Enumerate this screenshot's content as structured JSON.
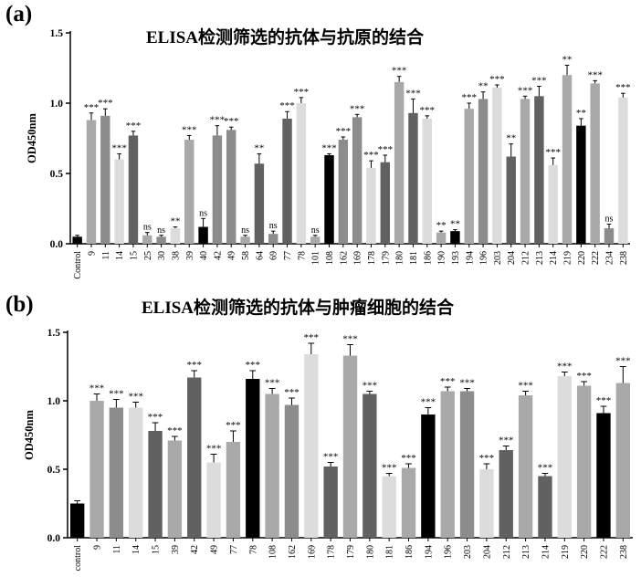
{
  "panels": {
    "a": {
      "label": "(a)",
      "title": "ELISA检测筛选的抗体与抗原的结合"
    },
    "b": {
      "label": "(b)",
      "title": "ELISA检测筛选的抗体与肿瘤细胞的结合"
    }
  },
  "chart_data": [
    {
      "type": "bar",
      "title": "ELISA检测筛选的抗体与抗原的结合",
      "ylabel": "OD450nm",
      "xlabel": "",
      "ylim": [
        0,
        1.5
      ],
      "yticks": [
        "0.0",
        "0.5",
        "1.0",
        "1.5"
      ],
      "grid": false,
      "categories": [
        "Control",
        "9",
        "11",
        "14",
        "15",
        "25",
        "30",
        "38",
        "39",
        "40",
        "42",
        "49",
        "58",
        "64",
        "69",
        "77",
        "78",
        "101",
        "108",
        "162",
        "169",
        "178",
        "179",
        "180",
        "181",
        "186",
        "190",
        "193",
        "194",
        "196",
        "203",
        "204",
        "212",
        "213",
        "214",
        "219",
        "220",
        "222",
        "234",
        "238"
      ],
      "values": [
        0.05,
        0.88,
        0.91,
        0.6,
        0.77,
        0.06,
        0.05,
        0.11,
        0.74,
        0.12,
        0.77,
        0.81,
        0.05,
        0.57,
        0.07,
        0.89,
        1.0,
        0.05,
        0.63,
        0.74,
        0.9,
        0.54,
        0.58,
        1.15,
        0.93,
        0.89,
        0.08,
        0.09,
        0.96,
        1.03,
        1.11,
        0.62,
        1.03,
        1.05,
        0.56,
        1.2,
        0.84,
        1.14,
        0.11,
        1.04
      ],
      "errors": [
        0.01,
        0.05,
        0.05,
        0.04,
        0.03,
        0.02,
        0.01,
        0.01,
        0.03,
        0.06,
        0.07,
        0.02,
        0.01,
        0.07,
        0.02,
        0.05,
        0.04,
        0.01,
        0.01,
        0.02,
        0.02,
        0.05,
        0.05,
        0.04,
        0.1,
        0.02,
        0.01,
        0.01,
        0.04,
        0.05,
        0.02,
        0.09,
        0.02,
        0.07,
        0.05,
        0.07,
        0.05,
        0.02,
        0.03,
        0.03
      ],
      "significance": [
        "",
        "***",
        "***",
        "***",
        "***",
        "ns",
        "ns",
        "**",
        "***",
        "ns",
        "***",
        "***",
        "ns",
        "**",
        "ns",
        "***",
        "***",
        "ns",
        "***",
        "***",
        "***",
        "***",
        "***",
        "***",
        "***",
        "***",
        "**",
        "**",
        "***",
        "**",
        "***",
        "**",
        "***",
        "***",
        "***",
        "**",
        "**",
        "***",
        "ns",
        "***"
      ],
      "colors": [
        "#000000",
        "#a9a9a9",
        "#8c8c8c",
        "#dcdcdc",
        "#616161",
        "#a9a9a9",
        "#8c8c8c",
        "#dcdcdc",
        "#a9a9a9",
        "#000000",
        "#8c8c8c",
        "#8c8c8c",
        "#a9a9a9",
        "#616161",
        "#8c8c8c",
        "#616161",
        "#dcdcdc",
        "#a9a9a9",
        "#000000",
        "#8c8c8c",
        "#8c8c8c",
        "#dcdcdc",
        "#616161",
        "#a9a9a9",
        "#616161",
        "#dcdcdc",
        "#a9a9a9",
        "#000000",
        "#a9a9a9",
        "#8c8c8c",
        "#dcdcdc",
        "#616161",
        "#a9a9a9",
        "#616161",
        "#dcdcdc",
        "#a9a9a9",
        "#000000",
        "#a9a9a9",
        "#8c8c8c",
        "#dcdcdc"
      ]
    },
    {
      "type": "bar",
      "title": "ELISA检测筛选的抗体与肿瘤细胞的结合",
      "ylabel": "OD450nm",
      "xlabel": "",
      "ylim": [
        0,
        1.5
      ],
      "yticks": [
        "0.0",
        "0.5",
        "1.0",
        "1.5"
      ],
      "grid": false,
      "categories": [
        "control",
        "9",
        "11",
        "14",
        "15",
        "39",
        "42",
        "49",
        "77",
        "78",
        "108",
        "162",
        "169",
        "178",
        "179",
        "180",
        "181",
        "186",
        "194",
        "196",
        "203",
        "204",
        "212",
        "213",
        "214",
        "219",
        "220",
        "222",
        "238"
      ],
      "values": [
        0.25,
        1.0,
        0.95,
        0.95,
        0.78,
        0.71,
        1.17,
        0.55,
        0.7,
        1.16,
        1.05,
        0.97,
        1.34,
        0.52,
        1.33,
        1.05,
        0.45,
        0.51,
        0.9,
        1.07,
        1.07,
        0.5,
        0.64,
        1.04,
        0.45,
        1.18,
        1.11,
        0.91,
        1.13
      ],
      "errors": [
        0.02,
        0.05,
        0.06,
        0.04,
        0.06,
        0.03,
        0.05,
        0.06,
        0.08,
        0.06,
        0.04,
        0.05,
        0.08,
        0.03,
        0.08,
        0.02,
        0.02,
        0.03,
        0.05,
        0.03,
        0.02,
        0.04,
        0.03,
        0.03,
        0.02,
        0.03,
        0.03,
        0.05,
        0.12
      ],
      "significance": [
        "",
        "***",
        "***",
        "***",
        "***",
        "***",
        "***",
        "***",
        "***",
        "***",
        "***",
        "***",
        "***",
        "***",
        "***",
        "***",
        "***",
        "***",
        "***",
        "***",
        "***",
        "***",
        "***",
        "***",
        "***",
        "***",
        "***",
        "***",
        "***"
      ],
      "colors": [
        "#000000",
        "#a9a9a9",
        "#8c8c8c",
        "#dcdcdc",
        "#616161",
        "#a9a9a9",
        "#616161",
        "#dcdcdc",
        "#a9a9a9",
        "#000000",
        "#a9a9a9",
        "#8c8c8c",
        "#dcdcdc",
        "#616161",
        "#a9a9a9",
        "#616161",
        "#dcdcdc",
        "#a9a9a9",
        "#000000",
        "#a9a9a9",
        "#8c8c8c",
        "#dcdcdc",
        "#616161",
        "#a9a9a9",
        "#616161",
        "#dcdcdc",
        "#a9a9a9",
        "#000000",
        "#a9a9a9"
      ]
    }
  ]
}
